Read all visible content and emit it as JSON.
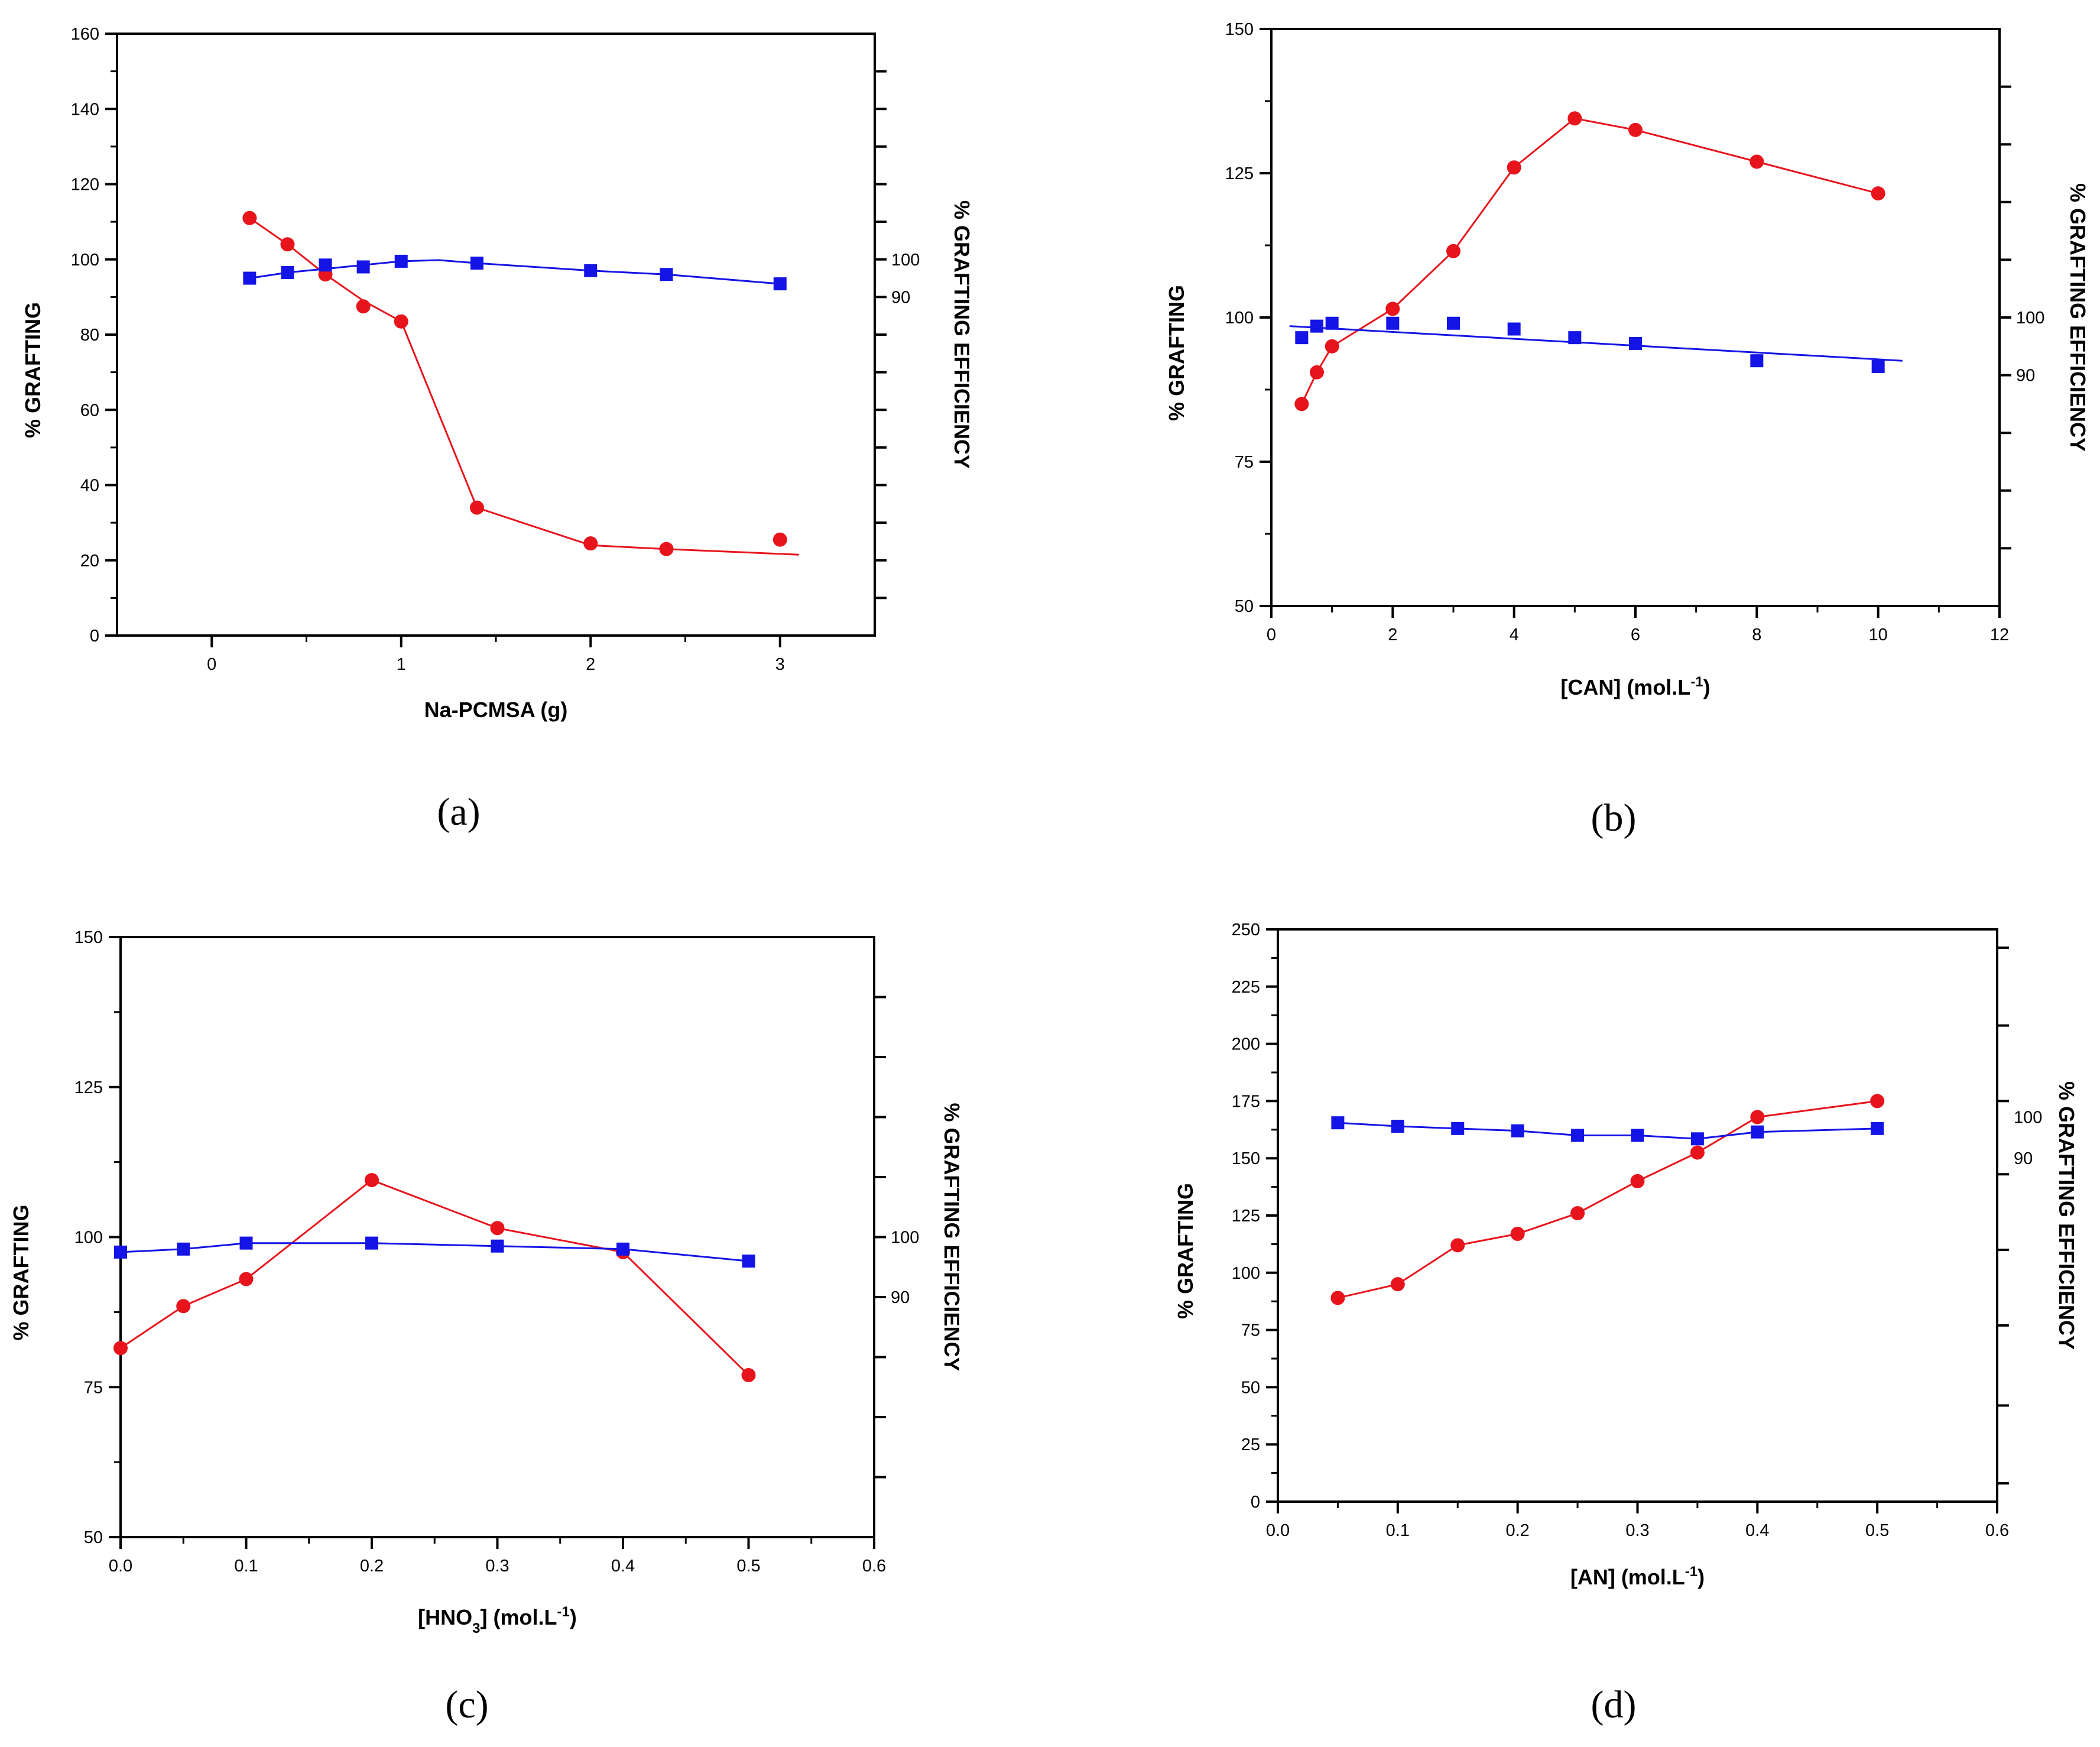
{
  "chart_data": [
    {
      "type": "line",
      "panel_label": "(a)",
      "xlabel": "Na-PCMSA (g)",
      "ylabel": "% GRAFTING",
      "y2label": "% GRAFTING EFFICIENCY",
      "xlim": [
        -0.5,
        3.5
      ],
      "ylim": [
        0,
        160
      ],
      "xticks": [
        0,
        1,
        2,
        3
      ],
      "xtick_labels": [
        "0",
        "1",
        "2",
        "3"
      ],
      "yticks": [
        0,
        20,
        40,
        60,
        80,
        100,
        120,
        140,
        160
      ],
      "ytick_labels": [
        "0",
        "20",
        "40",
        "60",
        "80",
        "100",
        "120",
        "140",
        "160"
      ],
      "y2_labels": [
        {
          "text": "100",
          "y": 100
        },
        {
          "text": "90",
          "y": 90
        }
      ],
      "y2_tick_ys": [
        10,
        20,
        30,
        40,
        50,
        60,
        70,
        80,
        90,
        100,
        110,
        120,
        130,
        140,
        150
      ],
      "series": [
        {
          "role": "grafting",
          "marker": "circle",
          "color": "#e8141c",
          "x": [
            0.2,
            0.4,
            0.6,
            0.8,
            1.0,
            1.4,
            2.0,
            2.4,
            3.0
          ],
          "y": [
            111,
            104,
            96,
            87.5,
            83.5,
            34,
            24.5,
            23,
            25.5
          ],
          "line": [
            [
              0.2,
              111
            ],
            [
              0.4,
              104
            ],
            [
              0.6,
              96
            ],
            [
              0.8,
              89
            ],
            [
              1.0,
              83.5
            ],
            [
              1.4,
              34
            ],
            [
              2.0,
              24
            ],
            [
              2.4,
              23
            ],
            [
              3.1,
              21.5
            ]
          ]
        },
        {
          "role": "efficiency",
          "marker": "square",
          "color": "#1414e6",
          "x": [
            0.2,
            0.4,
            0.6,
            0.8,
            1.0,
            1.4,
            2.0,
            2.4,
            3.0
          ],
          "y": [
            95,
            96.5,
            98.5,
            98,
            99.5,
            99,
            97,
            96,
            93.5
          ],
          "line": [
            [
              0.2,
              95
            ],
            [
              0.4,
              96.5
            ],
            [
              0.6,
              97.5
            ],
            [
              0.8,
              98.5
            ],
            [
              1.0,
              99.5
            ],
            [
              1.2,
              99.8
            ],
            [
              1.4,
              99
            ],
            [
              2.0,
              97
            ],
            [
              2.4,
              96
            ],
            [
              3.0,
              93.5
            ]
          ]
        }
      ]
    },
    {
      "type": "line",
      "panel_label": "(b)",
      "xlabel": "[CAN] (mol.L",
      "xlabel_sup": "-1",
      "xlabel_tail": ")",
      "ylabel": "% GRAFTING",
      "y2label": "% GRAFTING EFFICIENCY",
      "xlim": [
        0,
        12
      ],
      "ylim": [
        50,
        150
      ],
      "xticks": [
        0,
        2,
        4,
        6,
        8,
        10,
        12
      ],
      "xtick_labels": [
        "0",
        "2",
        "4",
        "6",
        "8",
        "10",
        "12"
      ],
      "yticks": [
        50,
        75,
        100,
        125,
        150
      ],
      "ytick_labels": [
        "50",
        "75",
        "100",
        "125",
        "150"
      ],
      "y2_labels": [
        {
          "text": "100",
          "y": 100
        },
        {
          "text": "90",
          "y": 90
        }
      ],
      "y2_tick_ys": [
        60,
        70,
        80,
        90,
        100,
        110,
        120,
        130,
        140
      ],
      "series": [
        {
          "role": "grafting",
          "marker": "circle",
          "color": "#e8141c",
          "x": [
            0.5,
            0.75,
            1,
            2,
            3,
            4,
            5,
            6,
            8,
            10
          ],
          "y": [
            85,
            90.5,
            95,
            101.5,
            111.5,
            126,
            134.5,
            132.5,
            127,
            121.5
          ],
          "line": [
            [
              0.5,
              85
            ],
            [
              0.75,
              90.5
            ],
            [
              1,
              95
            ],
            [
              2,
              101.5
            ],
            [
              3,
              111.5
            ],
            [
              4,
              126
            ],
            [
              5,
              134.5
            ],
            [
              6,
              132.5
            ],
            [
              8,
              127
            ],
            [
              10,
              121.5
            ]
          ]
        },
        {
          "role": "efficiency",
          "marker": "square",
          "color": "#1414e6",
          "x": [
            0.5,
            0.75,
            1,
            2,
            3,
            4,
            5,
            6,
            8,
            10
          ],
          "y": [
            96.5,
            98.5,
            99,
            99,
            99,
            98,
            96.5,
            95.5,
            92.5,
            91.5
          ],
          "line": [
            [
              0.3,
              98.5
            ],
            [
              10.4,
              92.5
            ]
          ]
        }
      ]
    },
    {
      "type": "line",
      "panel_label": "(c)",
      "xlabel": "[HNO",
      "xlabel_sub": "3",
      "xlabel_mid": "] (mol.L",
      "xlabel_sup": "-1",
      "xlabel_tail": ")",
      "ylabel": "% GRAFTING",
      "y2label": "% GRAFTING EFFICIENCY",
      "xlim": [
        0,
        0.6
      ],
      "ylim": [
        50,
        150
      ],
      "xticks": [
        0,
        0.1,
        0.2,
        0.3,
        0.4,
        0.5,
        0.6
      ],
      "xtick_labels": [
        "0.0",
        "0.1",
        "0.2",
        "0.3",
        "0.4",
        "0.5",
        "0.6"
      ],
      "yticks": [
        50,
        75,
        100,
        125,
        150
      ],
      "ytick_labels": [
        "50",
        "75",
        "100",
        "125",
        "150"
      ],
      "y2_labels": [
        {
          "text": "100",
          "y": 100
        },
        {
          "text": "90",
          "y": 90
        }
      ],
      "y2_tick_ys": [
        60,
        70,
        80,
        90,
        100,
        110,
        120,
        130,
        140
      ],
      "series": [
        {
          "role": "grafting",
          "marker": "circle",
          "color": "#e8141c",
          "x": [
            0,
            0.05,
            0.1,
            0.2,
            0.3,
            0.4,
            0.5
          ],
          "y": [
            81.5,
            88.5,
            93,
            109.5,
            101.5,
            97.5,
            77
          ],
          "line": [
            [
              0,
              81.5
            ],
            [
              0.05,
              88.5
            ],
            [
              0.1,
              93
            ],
            [
              0.2,
              109.5
            ],
            [
              0.3,
              101.5
            ],
            [
              0.4,
              97.5
            ],
            [
              0.5,
              77
            ]
          ]
        },
        {
          "role": "efficiency",
          "marker": "square",
          "color": "#1414e6",
          "x": [
            0,
            0.05,
            0.1,
            0.2,
            0.3,
            0.4,
            0.5
          ],
          "y": [
            97.5,
            98,
            99,
            99,
            98.5,
            98,
            96
          ],
          "line": [
            [
              0,
              97.5
            ],
            [
              0.05,
              98
            ],
            [
              0.1,
              99
            ],
            [
              0.2,
              99
            ],
            [
              0.3,
              98.5
            ],
            [
              0.4,
              98
            ],
            [
              0.5,
              96
            ]
          ]
        }
      ]
    },
    {
      "type": "line",
      "panel_label": "(d)",
      "xlabel": "[AN] (mol.L",
      "xlabel_sup": "-1",
      "xlabel_tail": ")",
      "ylabel": "% GRAFTING",
      "y2label": "% GRAFTING EFFICIENCY",
      "xlim": [
        0,
        0.6
      ],
      "ylim": [
        0,
        250
      ],
      "xticks": [
        0,
        0.1,
        0.2,
        0.3,
        0.4,
        0.5,
        0.6
      ],
      "xtick_labels": [
        "0.0",
        "0.1",
        "0.2",
        "0.3",
        "0.4",
        "0.5",
        "0.6"
      ],
      "yticks": [
        0,
        25,
        50,
        75,
        100,
        125,
        150,
        175,
        200,
        225,
        250
      ],
      "ytick_labels": [
        "0",
        "25",
        "50",
        "75",
        "100",
        "125",
        "150",
        "175",
        "200",
        "225",
        "250"
      ],
      "y2_labels": [
        {
          "text": "100",
          "y": 168
        },
        {
          "text": "90",
          "y": 150
        }
      ],
      "y2_tick_ys": [
        8,
        42,
        77,
        110,
        143,
        175,
        208,
        242
      ],
      "series": [
        {
          "role": "grafting",
          "marker": "circle",
          "color": "#e8141c",
          "x": [
            0.05,
            0.1,
            0.15,
            0.2,
            0.25,
            0.3,
            0.35,
            0.4,
            0.5
          ],
          "y": [
            89,
            95,
            112,
            117,
            126,
            140,
            152.5,
            168,
            175
          ],
          "line": [
            [
              0.05,
              89
            ],
            [
              0.1,
              95
            ],
            [
              0.15,
              112
            ],
            [
              0.2,
              117
            ],
            [
              0.25,
              126
            ],
            [
              0.3,
              140
            ],
            [
              0.35,
              152.5
            ],
            [
              0.4,
              168
            ],
            [
              0.5,
              175
            ]
          ]
        },
        {
          "role": "efficiency",
          "marker": "square",
          "color": "#1414e6",
          "x": [
            0.05,
            0.1,
            0.15,
            0.2,
            0.25,
            0.3,
            0.35,
            0.4,
            0.5
          ],
          "y": [
            165.5,
            164,
            163,
            162,
            160,
            160,
            158.5,
            161.5,
            163
          ],
          "line": [
            [
              0.05,
              165.5
            ],
            [
              0.1,
              164
            ],
            [
              0.15,
              163
            ],
            [
              0.2,
              162
            ],
            [
              0.25,
              160
            ],
            [
              0.3,
              160
            ],
            [
              0.35,
              158.5
            ],
            [
              0.4,
              161.5
            ],
            [
              0.5,
              163
            ]
          ]
        }
      ]
    }
  ]
}
